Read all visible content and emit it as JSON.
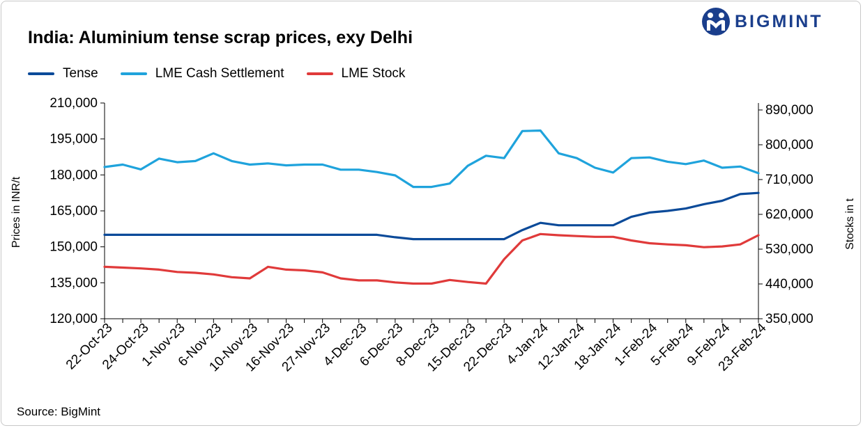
{
  "chart_data": {
    "type": "line",
    "title": "India: Aluminium tense scrap prices, exy Delhi",
    "ylabel": "Prices in INR/t",
    "y2label": "Stocks in t",
    "ylim": [
      120000,
      210000
    ],
    "y2lim": [
      350000,
      890000
    ],
    "yticks": [
      "210,000",
      "195,000",
      "180,000",
      "165,000",
      "150,000",
      "135,000",
      "120,000"
    ],
    "y2ticks": [
      "890,000",
      "800,000",
      "710,000",
      "620,000",
      "530,000",
      "440,000",
      "350,000"
    ],
    "xtick_labels": [
      "22-Oct-23",
      "24-Oct-23",
      "1-Nov-23",
      "6-Nov-23",
      "10-Nov-23",
      "16-Nov-23",
      "27-Nov-23",
      "4-Dec-23",
      "6-Dec-23",
      "8-Dec-23",
      "15-Dec-23",
      "22-Dec-23",
      "4-Jan-24",
      "12-Jan-24",
      "18-Jan-24",
      "1-Feb-24",
      "5-Feb-24",
      "9-Feb-24",
      "23-Feb-24"
    ],
    "series": [
      {
        "name": "Tense",
        "axis": "left",
        "color": "#0b4a99",
        "values": [
          155000,
          155000,
          155000,
          155000,
          155000,
          155000,
          155000,
          155000,
          155000,
          155000,
          155000,
          155000,
          155000,
          155000,
          155000,
          155000,
          154000,
          153200,
          153200,
          153200,
          153200,
          153200,
          153200,
          157000,
          160000,
          159000,
          159000,
          159000,
          159000,
          162500,
          164300,
          165000,
          166000,
          167800,
          169200,
          172000,
          172500
        ]
      },
      {
        "name": "LME Cash Settlement",
        "axis": "left",
        "color": "#1fa3dc",
        "values": [
          183300,
          184300,
          182300,
          186800,
          185300,
          185800,
          189000,
          185800,
          184300,
          184800,
          184000,
          184300,
          184300,
          182200,
          182200,
          181200,
          179800,
          175000,
          175000,
          176400,
          183800,
          188000,
          187000,
          198300,
          198500,
          189000,
          187000,
          183000,
          181000,
          187000,
          187300,
          185500,
          184500,
          186000,
          183000,
          183500,
          180700
        ]
      },
      {
        "name": "LME Stock",
        "axis": "right",
        "color": "#e03a3a",
        "values": [
          480000,
          478000,
          476000,
          473000,
          467000,
          465000,
          461000,
          454000,
          451000,
          480000,
          473000,
          471000,
          466000,
          451000,
          446000,
          446000,
          441000,
          438000,
          438000,
          447000,
          442000,
          438000,
          499000,
          546000,
          562000,
          559000,
          557000,
          555000,
          555000,
          546000,
          539000,
          536000,
          534000,
          529000,
          531000,
          536000,
          559000
        ]
      }
    ],
    "legend_position": "top-left"
  },
  "brand": {
    "name": "BIGMINT",
    "color": "#1a3e8c"
  },
  "footer": {
    "source": "Source: BigMint"
  }
}
